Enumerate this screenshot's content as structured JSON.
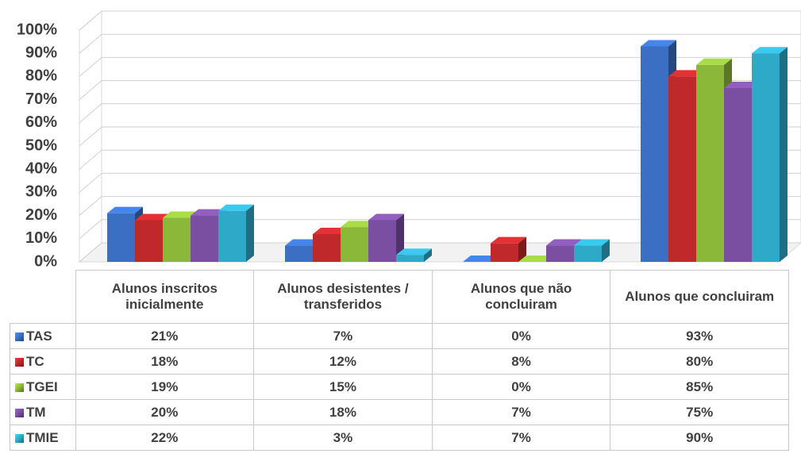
{
  "chart_data": {
    "type": "bar3d",
    "categories": [
      "Alunos inscritos inicialmente",
      "Alunos desistentes / transferidos",
      "Alunos que não concluiram",
      "Alunos que concluiram"
    ],
    "series": [
      {
        "name": "TAS",
        "color": "#3a6fc4",
        "values": [
          21,
          7,
          0,
          93
        ],
        "value_labels": [
          "21%",
          "7%",
          "0%",
          "93%"
        ]
      },
      {
        "name": "TC",
        "color": "#c0292b",
        "values": [
          18,
          12,
          8,
          80
        ],
        "value_labels": [
          "18%",
          "12%",
          "8%",
          "80%"
        ]
      },
      {
        "name": "TGEI",
        "color": "#8cb83a",
        "values": [
          19,
          15,
          0,
          85
        ],
        "value_labels": [
          "19%",
          "15%",
          "0%",
          "85%"
        ]
      },
      {
        "name": "TM",
        "color": "#7a4ea0",
        "values": [
          20,
          18,
          7,
          75
        ],
        "value_labels": [
          "20%",
          "18%",
          "7%",
          "75%"
        ]
      },
      {
        "name": "TMIE",
        "color": "#2fa9c8",
        "values": [
          22,
          3,
          7,
          90
        ],
        "value_labels": [
          "22%",
          "3%",
          "7%",
          "90%"
        ]
      }
    ],
    "ylim": [
      0,
      100
    ],
    "yticks": [
      {
        "value": 0,
        "label": "0%"
      },
      {
        "value": 10,
        "label": "10%"
      },
      {
        "value": 20,
        "label": "20%"
      },
      {
        "value": 30,
        "label": "30%"
      },
      {
        "value": 40,
        "label": "40%"
      },
      {
        "value": 50,
        "label": "50%"
      },
      {
        "value": 60,
        "label": "60%"
      },
      {
        "value": 70,
        "label": "70%"
      },
      {
        "value": 80,
        "label": "80%"
      },
      {
        "value": 90,
        "label": "90%"
      },
      {
        "value": 100,
        "label": "100%"
      }
    ],
    "grid": true,
    "legend": "table"
  }
}
